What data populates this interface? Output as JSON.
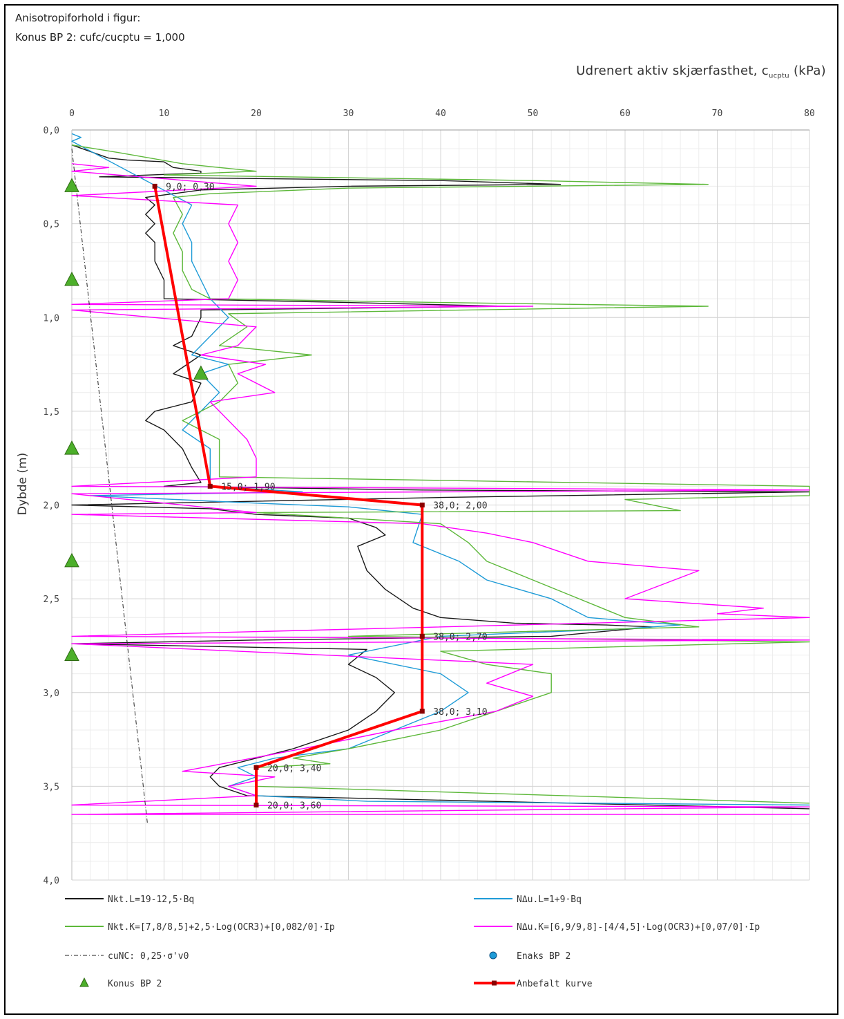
{
  "header": {
    "line1": "Anisotropiforhold i figur:",
    "line2": "Konus BP 2: cufc/cucptu = 1,000"
  },
  "chart_data": {
    "type": "line",
    "title": "",
    "xlabel_main": "Udrenert aktiv skjærfasthet, c",
    "xlabel_sub": "ucptu",
    "xlabel_unit": " (kPa)",
    "ylabel": "Dybde (m)",
    "xlim": [
      0,
      80
    ],
    "ylim": [
      4.0,
      0.0
    ],
    "x_ticks": [
      "0",
      "10",
      "20",
      "30",
      "40",
      "50",
      "60",
      "70",
      "80"
    ],
    "y_ticks": [
      "0,0",
      "0,5",
      "1,0",
      "1,5",
      "2,0",
      "2,5",
      "3,0",
      "3,5",
      "4,0"
    ],
    "grid": true,
    "legend_position": "bottom",
    "colors": {
      "nkt_l": "#1a1a1a",
      "ndu_l": "#1e9bd7",
      "nkt_k": "#5db83a",
      "ndu_k": "#ff00ff",
      "cunc": "#222222",
      "konus": "#4caf2a",
      "anbefalt": "#ff0000"
    },
    "series": [
      {
        "name": "Nkt.L=19-12,5·Bq",
        "key": "nkt_l",
        "points": [
          [
            0,
            0.08
          ],
          [
            4,
            0.15
          ],
          [
            6,
            0.16
          ],
          [
            10,
            0.17
          ],
          [
            11,
            0.2
          ],
          [
            14,
            0.22
          ],
          [
            14,
            0.23
          ],
          [
            3,
            0.25
          ],
          [
            40,
            0.27
          ],
          [
            53,
            0.29
          ],
          [
            30,
            0.3
          ],
          [
            14,
            0.32
          ],
          [
            8,
            0.36
          ],
          [
            9,
            0.4
          ],
          [
            8,
            0.45
          ],
          [
            9,
            0.5
          ],
          [
            8,
            0.55
          ],
          [
            9,
            0.6
          ],
          [
            9,
            0.7
          ],
          [
            10,
            0.8
          ],
          [
            10,
            0.9
          ],
          [
            30,
            0.92
          ],
          [
            47,
            0.94
          ],
          [
            14,
            0.96
          ],
          [
            14,
            1.0
          ],
          [
            13,
            1.1
          ],
          [
            11,
            1.15
          ],
          [
            14,
            1.2
          ],
          [
            11,
            1.3
          ],
          [
            14,
            1.35
          ],
          [
            13,
            1.45
          ],
          [
            9,
            1.5
          ],
          [
            8,
            1.55
          ],
          [
            10,
            1.6
          ],
          [
            12,
            1.7
          ],
          [
            13,
            1.8
          ],
          [
            14,
            1.88
          ],
          [
            10,
            1.9
          ],
          [
            38,
            1.92
          ],
          [
            80,
            1.93
          ],
          [
            40,
            1.96
          ],
          [
            10,
            1.99
          ],
          [
            0,
            2.0
          ],
          [
            15,
            2.02
          ],
          [
            20,
            2.05
          ],
          [
            30,
            2.07
          ],
          [
            33,
            2.12
          ],
          [
            34,
            2.16
          ],
          [
            31,
            2.22
          ],
          [
            32,
            2.35
          ],
          [
            34,
            2.45
          ],
          [
            37,
            2.55
          ],
          [
            40,
            2.6
          ],
          [
            48,
            2.63
          ],
          [
            58,
            2.64
          ],
          [
            63,
            2.65
          ],
          [
            52,
            2.7
          ],
          [
            20,
            2.72
          ],
          [
            0,
            2.74
          ],
          [
            32,
            2.77
          ],
          [
            30,
            2.85
          ],
          [
            33,
            2.92
          ],
          [
            35,
            3.0
          ],
          [
            33,
            3.1
          ],
          [
            30,
            3.2
          ],
          [
            24,
            3.3
          ],
          [
            20,
            3.35
          ],
          [
            16,
            3.4
          ],
          [
            15,
            3.45
          ],
          [
            16,
            3.5
          ],
          [
            19,
            3.55
          ],
          [
            80,
            3.62
          ]
        ]
      },
      {
        "name": "NΔu.L=1+9·Bq",
        "key": "ndu_l",
        "points": [
          [
            0,
            0.02
          ],
          [
            1,
            0.04
          ],
          [
            0,
            0.06
          ],
          [
            13,
            0.4
          ],
          [
            12,
            0.5
          ],
          [
            13,
            0.6
          ],
          [
            13,
            0.7
          ],
          [
            14,
            0.8
          ],
          [
            15,
            0.9
          ],
          [
            17,
            1.0
          ],
          [
            15,
            1.1
          ],
          [
            13,
            1.2
          ],
          [
            17,
            1.25
          ],
          [
            14,
            1.3
          ],
          [
            16,
            1.4
          ],
          [
            14,
            1.5
          ],
          [
            12,
            1.6
          ],
          [
            15,
            1.7
          ],
          [
            15,
            1.8
          ],
          [
            15,
            1.9
          ],
          [
            25,
            1.93
          ],
          [
            2,
            1.95
          ],
          [
            20,
            1.99
          ],
          [
            30,
            2.01
          ],
          [
            38,
            2.05
          ],
          [
            37,
            2.2
          ],
          [
            42,
            2.3
          ],
          [
            45,
            2.4
          ],
          [
            52,
            2.5
          ],
          [
            56,
            2.6
          ],
          [
            66,
            2.64
          ],
          [
            60,
            2.66
          ],
          [
            40,
            2.7
          ],
          [
            30,
            2.8
          ],
          [
            40,
            2.9
          ],
          [
            43,
            3.0
          ],
          [
            40,
            3.1
          ],
          [
            30,
            3.3
          ],
          [
            22,
            3.35
          ],
          [
            18,
            3.4
          ],
          [
            20,
            3.45
          ],
          [
            17,
            3.5
          ],
          [
            20,
            3.55
          ],
          [
            32,
            3.58
          ],
          [
            80,
            3.6
          ]
        ]
      },
      {
        "name": "Nkt.K=[7,8/8,5]+2,5·Log(OCR3)+[0,082/0]·Ip",
        "key": "nkt_k",
        "points": [
          [
            0,
            0.08
          ],
          [
            5,
            0.12
          ],
          [
            12,
            0.18
          ],
          [
            16,
            0.2
          ],
          [
            20,
            0.22
          ],
          [
            10,
            0.24
          ],
          [
            50,
            0.27
          ],
          [
            69,
            0.29
          ],
          [
            30,
            0.31
          ],
          [
            15,
            0.34
          ],
          [
            11,
            0.36
          ],
          [
            12,
            0.45
          ],
          [
            11,
            0.55
          ],
          [
            12,
            0.65
          ],
          [
            12,
            0.75
          ],
          [
            13,
            0.85
          ],
          [
            15,
            0.9
          ],
          [
            40,
            0.92
          ],
          [
            69,
            0.94
          ],
          [
            17,
            0.98
          ],
          [
            19,
            1.05
          ],
          [
            16,
            1.15
          ],
          [
            26,
            1.2
          ],
          [
            17,
            1.25
          ],
          [
            18,
            1.35
          ],
          [
            16,
            1.45
          ],
          [
            12,
            1.55
          ],
          [
            16,
            1.65
          ],
          [
            16,
            1.75
          ],
          [
            16,
            1.85
          ],
          [
            80,
            1.9
          ],
          [
            80,
            1.95
          ],
          [
            60,
            1.97
          ],
          [
            66,
            2.03
          ],
          [
            20,
            2.04
          ],
          [
            40,
            2.1
          ],
          [
            43,
            2.2
          ],
          [
            45,
            2.3
          ],
          [
            50,
            2.4
          ],
          [
            55,
            2.5
          ],
          [
            60,
            2.6
          ],
          [
            68,
            2.65
          ],
          [
            30,
            2.7
          ],
          [
            80,
            2.73
          ],
          [
            40,
            2.78
          ],
          [
            45,
            2.85
          ],
          [
            52,
            2.9
          ],
          [
            52,
            3.0
          ],
          [
            46,
            3.1
          ],
          [
            40,
            3.2
          ],
          [
            30,
            3.3
          ],
          [
            24,
            3.35
          ],
          [
            28,
            3.38
          ],
          [
            20,
            3.4
          ],
          [
            20,
            3.5
          ],
          [
            80,
            3.59
          ]
        ]
      },
      {
        "name": "NΔu.K=[6,9/9,8]-[4/4,5]·Log(OCR3)+[0,07/0]·Ip",
        "key": "ndu_k",
        "points": [
          [
            0,
            0.18
          ],
          [
            4,
            0.2
          ],
          [
            0,
            0.22
          ],
          [
            20,
            0.3
          ],
          [
            0,
            0.35
          ],
          [
            18,
            0.4
          ],
          [
            17,
            0.5
          ],
          [
            18,
            0.6
          ],
          [
            17,
            0.7
          ],
          [
            18,
            0.8
          ],
          [
            17,
            0.9
          ],
          [
            0,
            0.93
          ],
          [
            50,
            0.94
          ],
          [
            0,
            0.96
          ],
          [
            20,
            1.05
          ],
          [
            18,
            1.15
          ],
          [
            14,
            1.2
          ],
          [
            21,
            1.25
          ],
          [
            18,
            1.3
          ],
          [
            22,
            1.4
          ],
          [
            15,
            1.45
          ],
          [
            17,
            1.55
          ],
          [
            19,
            1.65
          ],
          [
            20,
            1.75
          ],
          [
            20,
            1.85
          ],
          [
            0,
            1.9
          ],
          [
            80,
            1.92
          ],
          [
            0,
            1.94
          ],
          [
            20,
            2.04
          ],
          [
            0,
            2.05
          ],
          [
            38,
            2.1
          ],
          [
            45,
            2.15
          ],
          [
            50,
            2.2
          ],
          [
            56,
            2.3
          ],
          [
            68,
            2.35
          ],
          [
            60,
            2.5
          ],
          [
            75,
            2.55
          ],
          [
            70,
            2.58
          ],
          [
            80,
            2.6
          ],
          [
            0,
            2.7
          ],
          [
            80,
            2.72
          ],
          [
            0,
            2.74
          ],
          [
            50,
            2.85
          ],
          [
            45,
            2.95
          ],
          [
            50,
            3.02
          ],
          [
            46,
            3.1
          ],
          [
            35,
            3.2
          ],
          [
            25,
            3.3
          ],
          [
            12,
            3.42
          ],
          [
            22,
            3.45
          ],
          [
            17,
            3.5
          ],
          [
            20,
            3.55
          ],
          [
            0,
            3.6
          ],
          [
            80,
            3.61
          ],
          [
            0,
            3.65
          ],
          [
            80,
            3.65
          ]
        ]
      },
      {
        "name": "cuNC: 0,25·σ'v0",
        "key": "cunc",
        "dashed": true,
        "points": [
          [
            0,
            0.1
          ],
          [
            8.2,
            3.7
          ]
        ]
      },
      {
        "name": "Anbefalt kurve",
        "key": "anbefalt",
        "points": [
          [
            9,
            0.3
          ],
          [
            15,
            1.9
          ],
          [
            38,
            2.0
          ],
          [
            38,
            2.7
          ],
          [
            38,
            3.1
          ],
          [
            20,
            3.4
          ],
          [
            20,
            3.6
          ]
        ]
      }
    ],
    "enaks_series": {
      "name": "Enaks BP 2",
      "points": []
    },
    "konus_series": {
      "name": "Konus BP 2",
      "points": [
        [
          0,
          0.3
        ],
        [
          0,
          0.8
        ],
        [
          14,
          1.3
        ],
        [
          0,
          1.7
        ],
        [
          0,
          2.3
        ],
        [
          0,
          2.8
        ]
      ]
    },
    "annotations": [
      {
        "x": 9,
        "y": 0.3,
        "text": "9,0; 0,30"
      },
      {
        "x": 15,
        "y": 1.9,
        "text": "15,0; 1,90"
      },
      {
        "x": 38,
        "y": 2.0,
        "text": "38,0; 2,00"
      },
      {
        "x": 38,
        "y": 2.7,
        "text": "38,0; 2,70"
      },
      {
        "x": 38,
        "y": 3.1,
        "text": "38,0; 3,10"
      },
      {
        "x": 20,
        "y": 3.4,
        "text": "20,0; 3,40"
      },
      {
        "x": 20,
        "y": 3.6,
        "text": "20,0; 3,60"
      }
    ],
    "legend": [
      {
        "label": "Nkt.L=19-12,5·Bq",
        "key": "nkt_l",
        "marker": "line"
      },
      {
        "label": "NΔu.L=1+9·Bq",
        "key": "ndu_l",
        "marker": "line"
      },
      {
        "label": "Nkt.K=[7,8/8,5]+2,5·Log(OCR3)+[0,082/0]·Ip",
        "key": "nkt_k",
        "marker": "line"
      },
      {
        "label": "NΔu.K=[6,9/9,8]-[4/4,5]·Log(OCR3)+[0,07/0]·Ip",
        "key": "ndu_k",
        "marker": "line"
      },
      {
        "label": "cuNC: 0,25·σ'v0",
        "key": "cunc",
        "marker": "dashdot"
      },
      {
        "label": "Enaks BP 2",
        "key": "enaks",
        "marker": "circle"
      },
      {
        "label": "Konus BP 2",
        "key": "konus",
        "marker": "triangle"
      },
      {
        "label": "Anbefalt kurve",
        "key": "anbefalt",
        "marker": "redline"
      }
    ]
  }
}
